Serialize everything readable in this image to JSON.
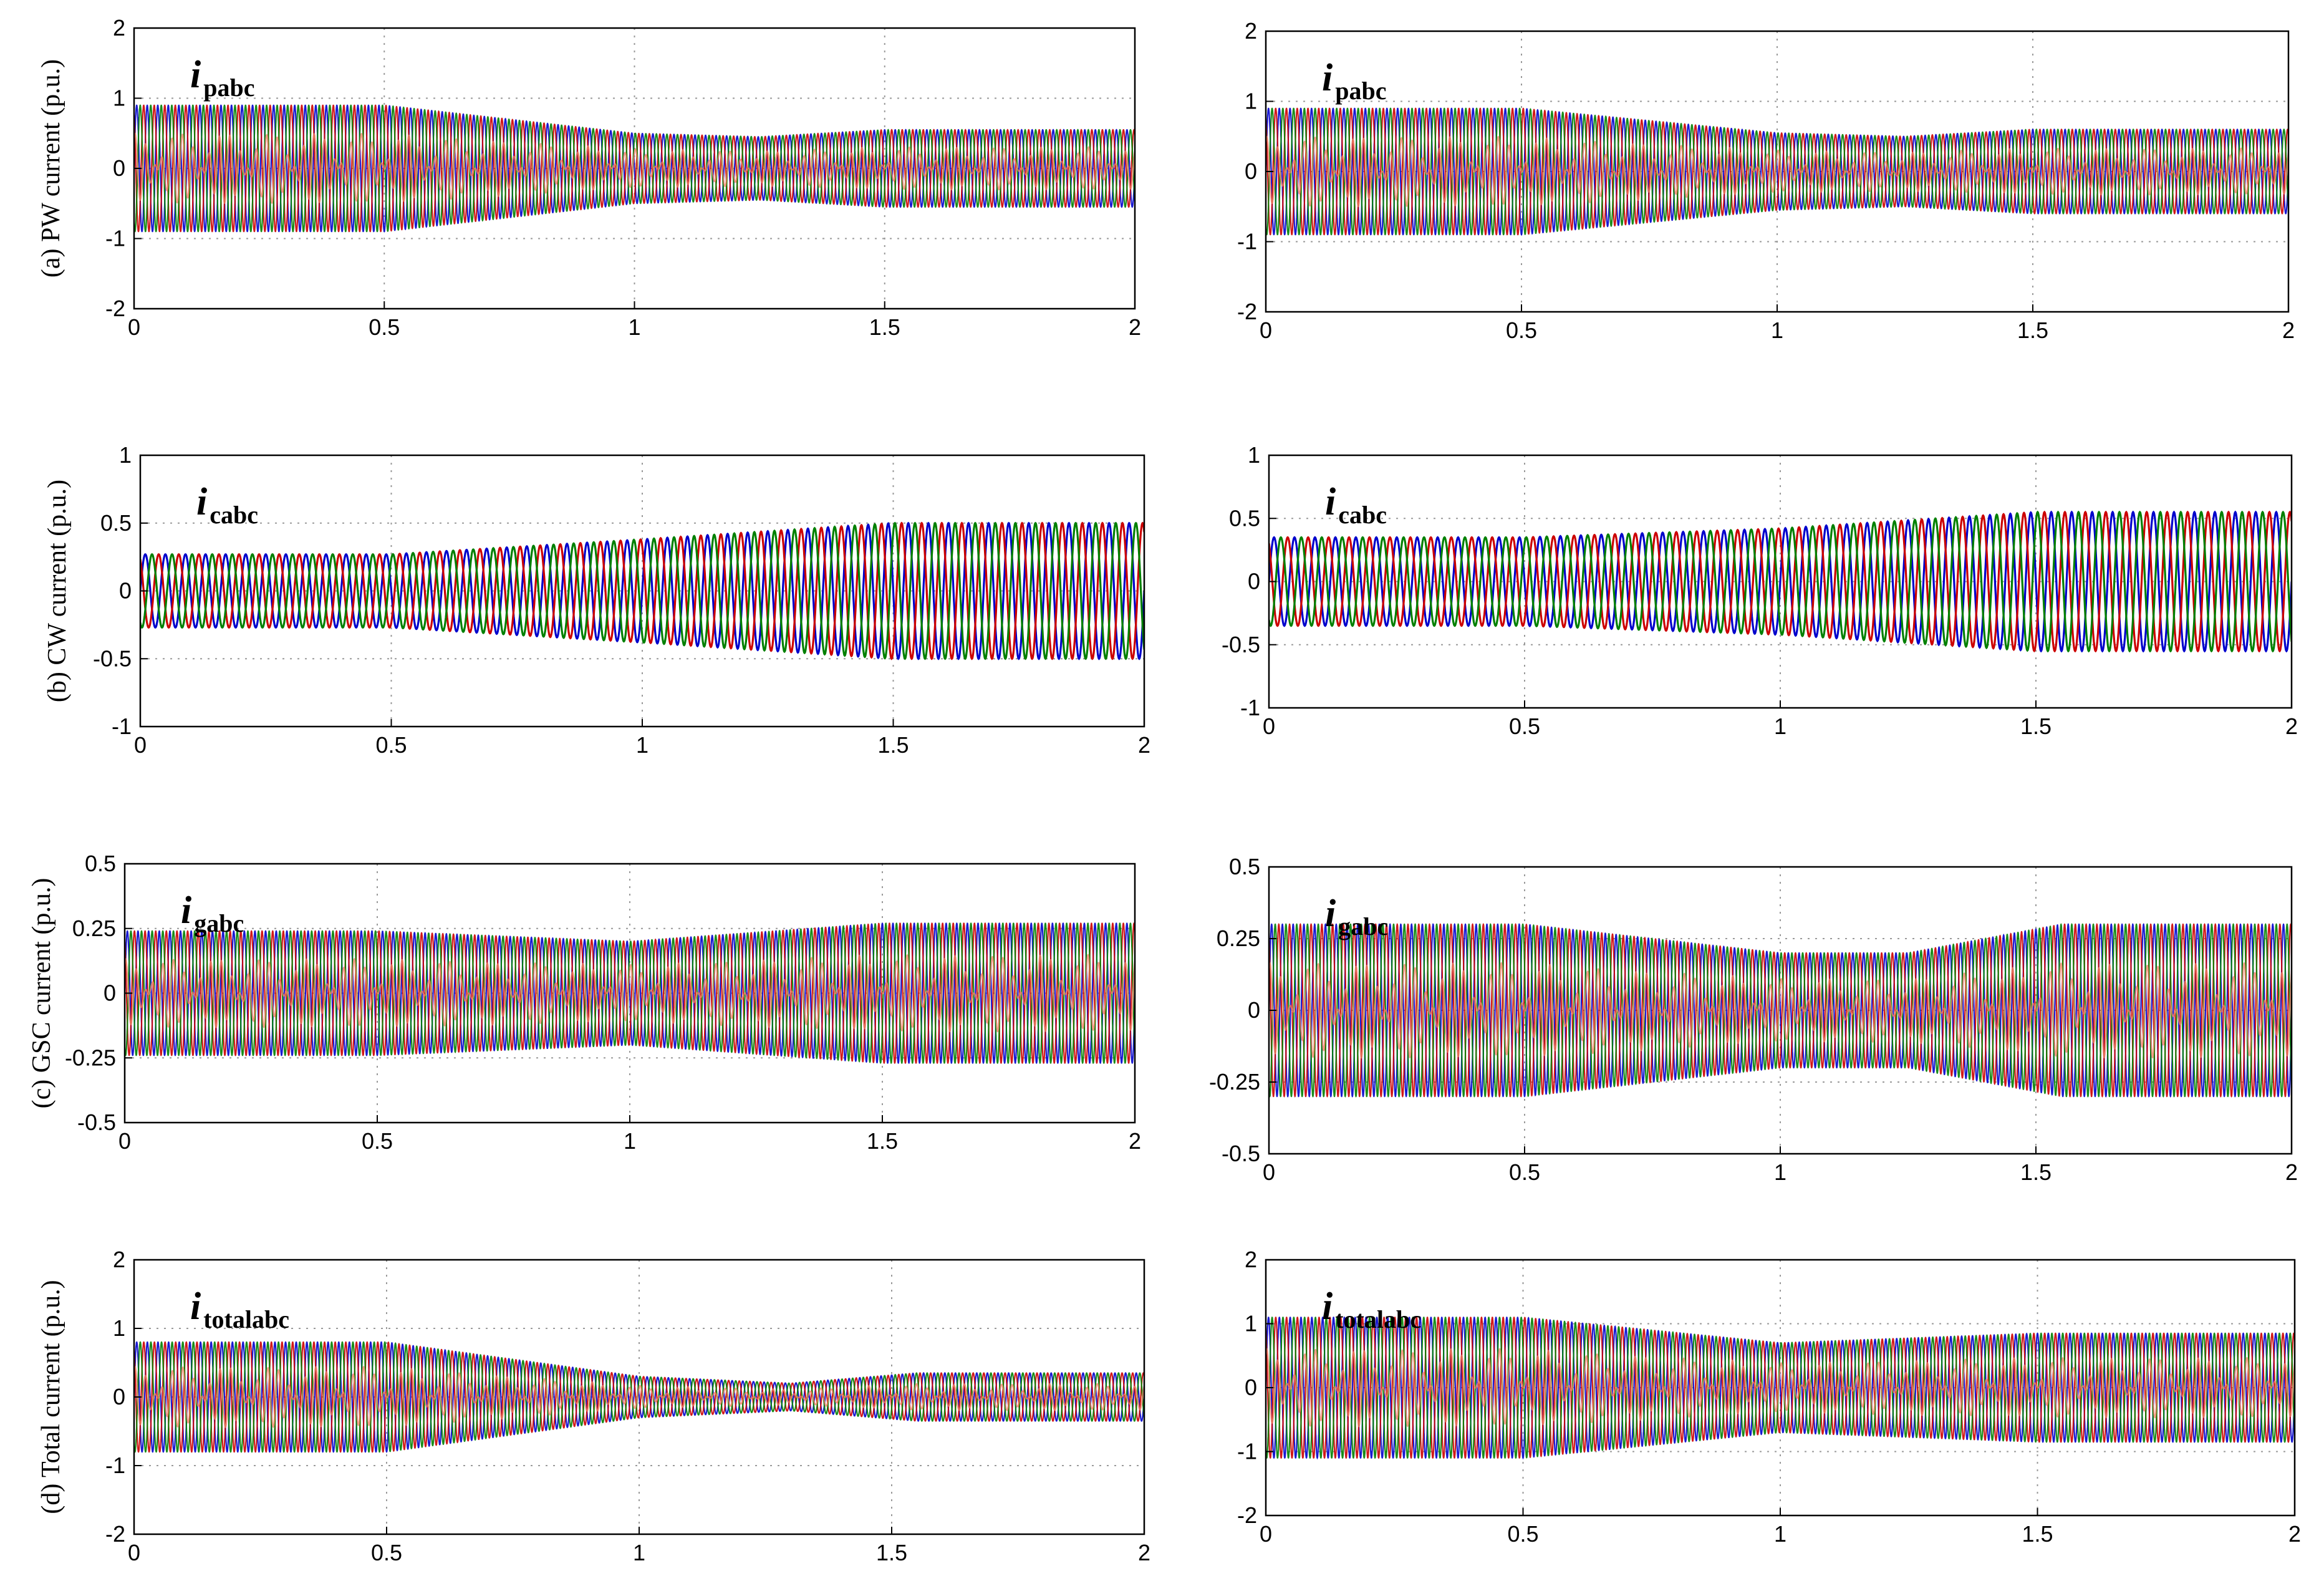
{
  "chart_data": [
    {
      "type": "line",
      "xlim": [
        0,
        2
      ],
      "ylim": [
        -2,
        2
      ],
      "xticks": [
        "0",
        "0.5",
        "1",
        "1.5",
        "2"
      ],
      "yticks": [
        "-2",
        "-1",
        "0",
        "1",
        "2"
      ],
      "ylabel": "(a) PW current (p.u.)",
      "signal": "i",
      "subscript": "pabc",
      "grid": true,
      "style": "dense",
      "cycles": 95,
      "series": [
        {
          "color": "#0000cc",
          "phase": 0
        },
        {
          "color": "#cc0000",
          "phase": 2.094
        },
        {
          "color": "#008000",
          "phase": 4.189
        }
      ],
      "envelope": {
        "t": [
          0,
          0.5,
          1.0,
          1.25,
          1.5,
          2.0
        ],
        "amplitude": [
          0.9,
          0.9,
          0.5,
          0.45,
          0.55,
          0.55
        ]
      }
    },
    {
      "type": "line",
      "xlim": [
        0,
        2
      ],
      "ylim": [
        -2,
        2
      ],
      "xticks": [
        "0",
        "0.5",
        "1",
        "1.5",
        "2"
      ],
      "yticks": [
        "-2",
        "-1",
        "0",
        "1",
        "2"
      ],
      "ylabel": "",
      "signal": "i",
      "subscript": "pabc",
      "grid": true,
      "style": "dense",
      "cycles": 95,
      "series": [
        {
          "color": "#0000cc",
          "phase": 0
        },
        {
          "color": "#cc0000",
          "phase": 2.094
        },
        {
          "color": "#008000",
          "phase": 4.189
        }
      ],
      "envelope": {
        "t": [
          0,
          0.5,
          1.0,
          1.25,
          1.5,
          2.0
        ],
        "amplitude": [
          0.9,
          0.9,
          0.55,
          0.5,
          0.6,
          0.6
        ]
      }
    },
    {
      "type": "line",
      "xlim": [
        0,
        2
      ],
      "ylim": [
        -1,
        1
      ],
      "xticks": [
        "0",
        "0.5",
        "1",
        "1.5",
        "2"
      ],
      "yticks": [
        "-1",
        "-0.5",
        "0",
        "0.5",
        "1"
      ],
      "ylabel": "(b) CW current (p.u.)",
      "signal": "i",
      "subscript": "cabc",
      "grid": true,
      "style": "sine",
      "cycles": 50,
      "series": [
        {
          "color": "#0000cc",
          "phase": 0
        },
        {
          "color": "#cc0000",
          "phase": 2.094
        },
        {
          "color": "#008000",
          "phase": 4.189
        }
      ],
      "envelope": {
        "t": [
          0,
          0.5,
          1.0,
          1.5,
          2.0
        ],
        "amplitude": [
          0.27,
          0.27,
          0.38,
          0.5,
          0.5
        ]
      }
    },
    {
      "type": "line",
      "xlim": [
        0,
        2
      ],
      "ylim": [
        -1,
        1
      ],
      "xticks": [
        "0",
        "0.5",
        "1",
        "1.5",
        "2"
      ],
      "yticks": [
        "-1",
        "-0.5",
        "0",
        "0.5",
        "1"
      ],
      "ylabel": "",
      "signal": "i",
      "subscript": "cabc",
      "grid": true,
      "style": "sine",
      "cycles": 50,
      "series": [
        {
          "color": "#0000cc",
          "phase": 0
        },
        {
          "color": "#cc0000",
          "phase": 2.094
        },
        {
          "color": "#008000",
          "phase": 4.189
        }
      ],
      "envelope": {
        "t": [
          0,
          0.5,
          1.0,
          1.5,
          2.0
        ],
        "amplitude": [
          0.35,
          0.35,
          0.42,
          0.55,
          0.55
        ]
      }
    },
    {
      "type": "line",
      "xlim": [
        0,
        2
      ],
      "ylim": [
        -0.5,
        0.5
      ],
      "xticks": [
        "0",
        "0.5",
        "1",
        "1.5",
        "2"
      ],
      "yticks": [
        "-0.5",
        "-0.25",
        "0",
        "0.25",
        "0.5"
      ],
      "ylabel": "(c) GSC current (p.u.)",
      "signal": "i",
      "subscript": "gabc",
      "grid": true,
      "style": "dense",
      "cycles": 95,
      "series": [
        {
          "color": "#0000cc",
          "phase": 0
        },
        {
          "color": "#cc0000",
          "phase": 2.094
        },
        {
          "color": "#008000",
          "phase": 4.189
        }
      ],
      "envelope": {
        "t": [
          0,
          0.5,
          1.0,
          1.5,
          2.0
        ],
        "amplitude": [
          0.24,
          0.24,
          0.2,
          0.27,
          0.27
        ]
      }
    },
    {
      "type": "line",
      "xlim": [
        0,
        2
      ],
      "ylim": [
        -0.5,
        0.5
      ],
      "xticks": [
        "0",
        "0.5",
        "1",
        "1.5",
        "2"
      ],
      "yticks": [
        "-0.5",
        "-0.25",
        "0",
        "0.25",
        "0.5"
      ],
      "ylabel": "",
      "signal": "i",
      "subscript": "gabc",
      "grid": true,
      "style": "dense",
      "cycles": 95,
      "series": [
        {
          "color": "#0000cc",
          "phase": 0
        },
        {
          "color": "#cc0000",
          "phase": 2.094
        },
        {
          "color": "#008000",
          "phase": 4.189
        }
      ],
      "envelope": {
        "t": [
          0,
          0.5,
          1.0,
          1.25,
          1.55,
          2.0
        ],
        "amplitude": [
          0.3,
          0.3,
          0.2,
          0.2,
          0.3,
          0.3
        ]
      }
    },
    {
      "type": "line",
      "xlim": [
        0,
        2
      ],
      "ylim": [
        -2,
        2
      ],
      "xticks": [
        "0",
        "0.5",
        "1",
        "1.5",
        "2"
      ],
      "yticks": [
        "-2",
        "-1",
        "0",
        "1",
        "2"
      ],
      "ylabel": "(d) Total current (p.u.)",
      "signal": "i",
      "subscript": "totalabc",
      "grid": true,
      "style": "dense",
      "cycles": 95,
      "series": [
        {
          "color": "#0000cc",
          "phase": 0
        },
        {
          "color": "#cc0000",
          "phase": 2.094
        },
        {
          "color": "#008000",
          "phase": 4.189
        }
      ],
      "envelope": {
        "t": [
          0,
          0.5,
          1.0,
          1.3,
          1.55,
          2.0
        ],
        "amplitude": [
          0.8,
          0.8,
          0.3,
          0.2,
          0.35,
          0.35
        ]
      }
    },
    {
      "type": "line",
      "xlim": [
        0,
        2
      ],
      "ylim": [
        -2,
        2
      ],
      "xticks": [
        "0",
        "0.5",
        "1",
        "1.5",
        "2"
      ],
      "yticks": [
        "-2",
        "-1",
        "0",
        "1",
        "2"
      ],
      "ylabel": "",
      "signal": "i",
      "subscript": "totalabc",
      "grid": true,
      "style": "dense",
      "cycles": 95,
      "series": [
        {
          "color": "#0000cc",
          "phase": 0
        },
        {
          "color": "#cc0000",
          "phase": 2.094
        },
        {
          "color": "#008000",
          "phase": 4.189
        }
      ],
      "envelope": {
        "t": [
          0,
          0.5,
          1.0,
          1.5,
          2.0
        ],
        "amplitude": [
          1.1,
          1.1,
          0.7,
          0.85,
          0.85
        ]
      }
    }
  ]
}
